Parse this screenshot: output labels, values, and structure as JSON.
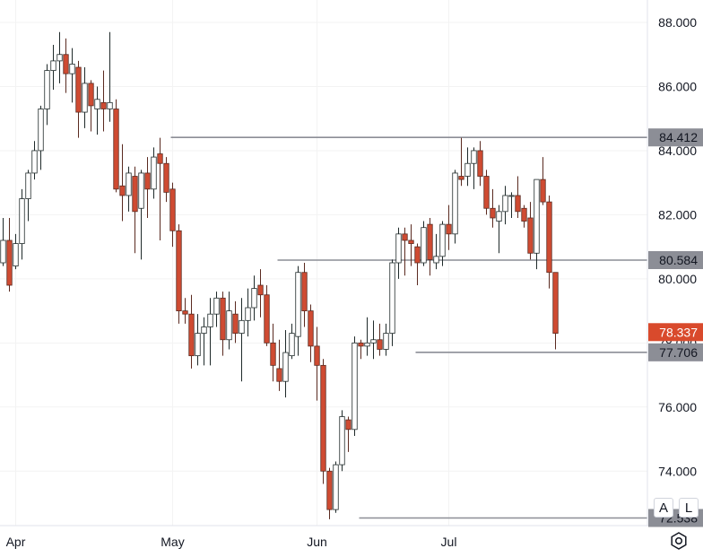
{
  "chart_data": {
    "type": "candlestick",
    "y_axis": {
      "ticks": [
        "88.000",
        "86.000",
        "84.000",
        "82.000",
        "80.000",
        "78.000",
        "76.000",
        "74.000"
      ],
      "range": [
        72.3,
        88.7
      ]
    },
    "x_axis": {
      "ticks": [
        {
          "label": "Apr",
          "index": 2
        },
        {
          "label": "May",
          "index": 27
        },
        {
          "label": "Jun",
          "index": 50
        },
        {
          "label": "Jul",
          "index": 71
        }
      ]
    },
    "candles": [
      [
        80.5,
        81.2,
        81.9,
        80.4
      ],
      [
        81.2,
        79.8,
        81.9,
        79.6
      ],
      [
        80.4,
        81.1,
        81.4,
        80.3
      ],
      [
        81.1,
        82.5,
        82.8,
        80.6
      ],
      [
        82.5,
        83.3,
        83.4,
        81.8
      ],
      [
        83.3,
        84.0,
        84.3,
        83.1
      ],
      [
        84.0,
        85.3,
        85.4,
        83.4
      ],
      [
        85.3,
        86.5,
        86.7,
        84.8
      ],
      [
        86.5,
        86.8,
        87.3,
        85.9
      ],
      [
        86.8,
        87.0,
        87.7,
        86.1
      ],
      [
        87.0,
        86.4,
        87.5,
        85.8
      ],
      [
        86.4,
        86.7,
        87.2,
        85.5
      ],
      [
        86.6,
        85.2,
        86.8,
        84.4
      ],
      [
        85.2,
        86.1,
        86.6,
        84.7
      ],
      [
        86.1,
        85.4,
        86.2,
        84.6
      ],
      [
        85.3,
        85.6,
        86.0,
        84.5
      ],
      [
        85.5,
        85.3,
        86.5,
        84.6
      ],
      [
        85.3,
        85.5,
        87.7,
        84.9
      ],
      [
        85.3,
        82.8,
        85.6,
        82.7
      ],
      [
        82.9,
        82.6,
        84.2,
        81.8
      ],
      [
        82.6,
        83.3,
        83.5,
        82.1
      ],
      [
        83.2,
        82.1,
        83.5,
        80.8
      ],
      [
        82.2,
        83.3,
        83.4,
        80.6
      ],
      [
        83.3,
        82.8,
        83.8,
        81.9
      ],
      [
        82.8,
        83.8,
        84.1,
        82.5
      ],
      [
        83.9,
        83.6,
        84.4,
        81.2
      ],
      [
        83.6,
        82.7,
        83.8,
        82.4
      ],
      [
        82.8,
        81.5,
        83.0,
        81.0
      ],
      [
        81.5,
        79.0,
        81.7,
        78.6
      ],
      [
        79.0,
        78.9,
        79.4,
        78.6
      ],
      [
        78.9,
        77.6,
        79.5,
        77.2
      ],
      [
        77.6,
        78.3,
        78.9,
        77.3
      ],
      [
        78.3,
        78.5,
        78.8,
        77.3
      ],
      [
        78.5,
        78.9,
        79.4,
        77.3
      ],
      [
        78.9,
        79.4,
        79.6,
        78.5
      ],
      [
        79.4,
        78.1,
        79.6,
        77.6
      ],
      [
        78.1,
        79.0,
        79.6,
        77.8
      ],
      [
        78.9,
        78.3,
        79.3,
        78.0
      ],
      [
        78.3,
        78.7,
        79.4,
        76.8
      ],
      [
        78.7,
        79.1,
        79.7,
        78.2
      ],
      [
        79.1,
        79.7,
        80.1,
        78.7
      ],
      [
        79.8,
        79.5,
        80.3,
        78.8
      ],
      [
        79.5,
        78.0,
        79.8,
        77.9
      ],
      [
        78.0,
        77.3,
        78.6,
        76.8
      ],
      [
        77.2,
        76.8,
        78.1,
        76.5
      ],
      [
        76.8,
        77.7,
        78.4,
        76.3
      ],
      [
        77.6,
        78.3,
        78.6,
        77.5
      ],
      [
        78.2,
        80.2,
        80.4,
        77.6
      ],
      [
        80.2,
        79.0,
        80.5,
        78.5
      ],
      [
        79.0,
        77.9,
        79.2,
        77.4
      ],
      [
        77.9,
        77.3,
        78.5,
        76.2
      ],
      [
        77.3,
        74.0,
        77.5,
        73.6
      ],
      [
        74.0,
        72.8,
        74.1,
        72.5
      ],
      [
        72.8,
        74.2,
        74.3,
        72.7
      ],
      [
        74.2,
        75.7,
        75.9,
        74.0
      ],
      [
        75.6,
        75.3,
        75.7,
        74.6
      ],
      [
        75.3,
        78.0,
        78.2,
        75.1
      ],
      [
        78.0,
        77.9,
        78.1,
        77.5
      ],
      [
        77.9,
        78.0,
        78.8,
        77.6
      ],
      [
        78.0,
        78.1,
        78.7,
        77.5
      ],
      [
        78.1,
        77.8,
        78.6,
        77.6
      ],
      [
        77.8,
        78.3,
        78.6,
        77.6
      ],
      [
        78.3,
        80.5,
        80.6,
        77.9
      ],
      [
        80.5,
        81.4,
        81.6,
        80.0
      ],
      [
        81.4,
        81.2,
        81.6,
        80.1
      ],
      [
        81.2,
        81.1,
        81.7,
        80.4
      ],
      [
        81.0,
        80.5,
        81.1,
        79.8
      ],
      [
        80.5,
        81.6,
        81.8,
        80.4
      ],
      [
        81.7,
        80.6,
        81.9,
        80.1
      ],
      [
        80.5,
        80.7,
        81.4,
        80.3
      ],
      [
        80.7,
        81.7,
        81.8,
        80.4
      ],
      [
        81.7,
        81.4,
        82.3,
        80.9
      ],
      [
        81.4,
        83.3,
        83.4,
        81.1
      ],
      [
        83.2,
        83.1,
        84.4,
        82.9
      ],
      [
        83.2,
        83.6,
        84.1,
        82.9
      ],
      [
        83.6,
        84.0,
        84.1,
        82.8
      ],
      [
        84.0,
        83.2,
        84.3,
        82.9
      ],
      [
        83.2,
        82.2,
        83.4,
        82.0
      ],
      [
        82.2,
        81.9,
        82.8,
        81.6
      ],
      [
        81.8,
        82.1,
        82.3,
        80.8
      ],
      [
        82.1,
        82.6,
        82.9,
        81.7
      ],
      [
        82.6,
        82.6,
        82.7,
        81.9
      ],
      [
        82.6,
        82.1,
        83.2,
        81.9
      ],
      [
        82.2,
        81.8,
        82.3,
        81.6
      ],
      [
        81.9,
        80.8,
        82.4,
        80.6
      ],
      [
        80.8,
        83.1,
        83.1,
        80.3
      ],
      [
        83.1,
        82.4,
        83.8,
        82.3
      ],
      [
        82.4,
        80.2,
        82.6,
        79.7
      ],
      [
        80.2,
        78.3,
        80.2,
        77.8
      ]
    ],
    "horizontal_levels": [
      {
        "value": 84.412,
        "label": "84.412",
        "from_index": 27
      },
      {
        "value": 80.584,
        "label": "80.584",
        "from_index": 44
      },
      {
        "value": 77.706,
        "label": "77.706",
        "from_index": 66
      },
      {
        "value": 72.538,
        "label": "72.538",
        "from_index": 57
      }
    ],
    "last_price": {
      "value": 78.337,
      "label": "78.337",
      "color": "#d94a2c"
    },
    "colors": {
      "up_fill": "#ffffff",
      "up_border": "#1f2a2a",
      "down_fill": "#cf4b32",
      "down_border": "#5a2a20",
      "level_line": "#8c8e96",
      "level_tag": "#8c8e96",
      "grid": "#f3f3f3"
    }
  },
  "controls": {
    "auto_label": "A",
    "log_label": "L",
    "settings_icon": "gear-icon"
  }
}
